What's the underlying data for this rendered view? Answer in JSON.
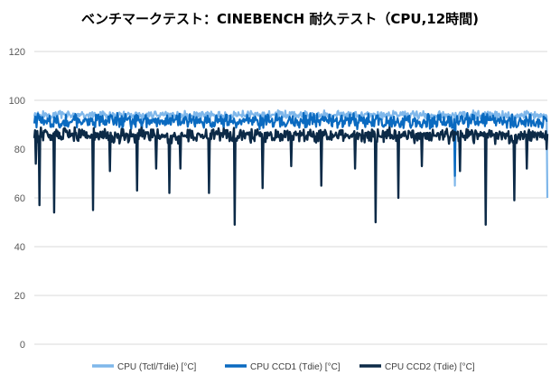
{
  "chart_data": {
    "type": "line",
    "title": "ベンチマークテスト：CINEBENCH 耐久テスト（CPU,12時間)",
    "xlabel": "",
    "ylabel": "",
    "ylim": [
      0,
      120
    ],
    "yticks": [
      0,
      20,
      40,
      60,
      80,
      100,
      120
    ],
    "grid": true,
    "legend_position": "bottom",
    "series": [
      {
        "name": "CPU (Tctl/Tdie) [°C]",
        "color": "#7fb7ea",
        "typical_range": [
          92,
          96
        ],
        "dips": [
          {
            "x": 0.21,
            "y": 87
          },
          {
            "x": 0.82,
            "y": 65
          },
          {
            "x": 1.0,
            "y": 60
          }
        ]
      },
      {
        "name": "CPU CCD1 (Tdie) [°C]",
        "color": "#0a6ac0",
        "typical_range": [
          88,
          95
        ],
        "dips": [
          {
            "x": 0.82,
            "y": 69
          }
        ]
      },
      {
        "name": "CPU CCD2 (Tdie) [°C]",
        "color": "#0c2a47",
        "typical_range": [
          82,
          89
        ],
        "dips": [
          {
            "x": 0.003,
            "y": 74
          },
          {
            "x": 0.01,
            "y": 57
          },
          {
            "x": 0.038,
            "y": 54
          },
          {
            "x": 0.115,
            "y": 55
          },
          {
            "x": 0.148,
            "y": 71
          },
          {
            "x": 0.2,
            "y": 63
          },
          {
            "x": 0.237,
            "y": 72
          },
          {
            "x": 0.263,
            "y": 62
          },
          {
            "x": 0.285,
            "y": 72
          },
          {
            "x": 0.34,
            "y": 62
          },
          {
            "x": 0.39,
            "y": 49
          },
          {
            "x": 0.445,
            "y": 64
          },
          {
            "x": 0.5,
            "y": 73
          },
          {
            "x": 0.56,
            "y": 65
          },
          {
            "x": 0.625,
            "y": 72
          },
          {
            "x": 0.665,
            "y": 50
          },
          {
            "x": 0.71,
            "y": 60
          },
          {
            "x": 0.755,
            "y": 73
          },
          {
            "x": 0.83,
            "y": 71
          },
          {
            "x": 0.88,
            "y": 49
          },
          {
            "x": 0.935,
            "y": 59
          },
          {
            "x": 0.96,
            "y": 72
          },
          {
            "x": 0.998,
            "y": 80
          }
        ]
      }
    ]
  }
}
